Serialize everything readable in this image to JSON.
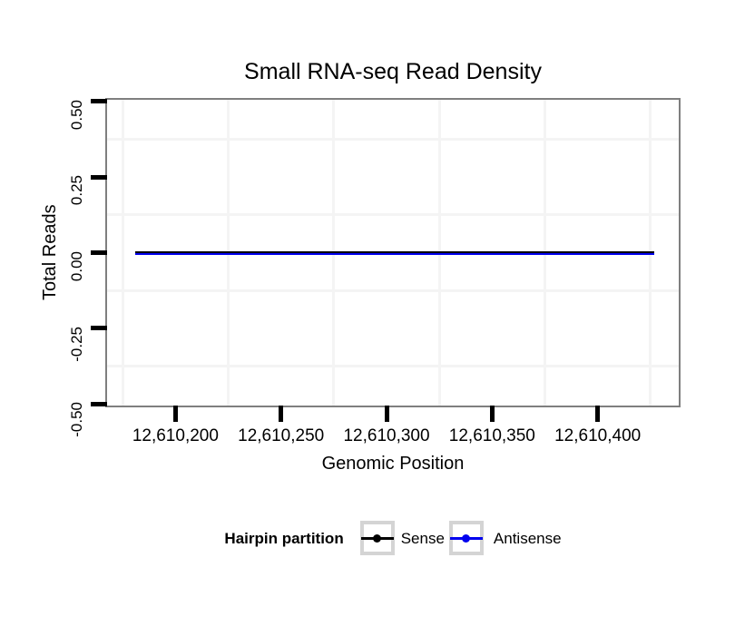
{
  "chart_data": {
    "type": "line",
    "title": "Small RNA-seq Read Density",
    "xlabel": "Genomic Position",
    "ylabel": "Total Reads",
    "xlim": [
      12610167.6,
      12610438.4
    ],
    "ylim": [
      -0.5045,
      0.5045
    ],
    "x_ticks": [
      {
        "value": 12610200,
        "label": "12,610,200"
      },
      {
        "value": 12610250,
        "label": "12,610,250"
      },
      {
        "value": 12610300,
        "label": "12,610,300"
      },
      {
        "value": 12610350,
        "label": "12,610,350"
      },
      {
        "value": 12610400,
        "label": "12,610,400"
      }
    ],
    "y_ticks": [
      {
        "value": 0.5,
        "label": "0.50"
      },
      {
        "value": 0.25,
        "label": "0.25"
      },
      {
        "value": 0.0,
        "label": "0.00"
      },
      {
        "value": -0.25,
        "label": "-0.25"
      },
      {
        "value": -0.5,
        "label": "-0.50"
      }
    ],
    "x_minor_gridlines": [
      12610175,
      12610225,
      12610275,
      12610325,
      12610375,
      12610425
    ],
    "y_minor_gridlines": [
      0.375,
      0.125,
      -0.125,
      -0.375
    ],
    "grid": "minor-only",
    "legend_position": "bottom",
    "series": [
      {
        "name": "Antisense",
        "color": "#0000ee",
        "x_start": 12610181,
        "x_end": 12610427,
        "y_value": 0
      },
      {
        "name": "Sense",
        "color": "#000000",
        "x_start": 12610181,
        "x_end": 12610427,
        "y_value": 0
      }
    ],
    "legend": {
      "title": "Hairpin partition",
      "entries": [
        {
          "label": "Sense",
          "color": "#000000"
        },
        {
          "label": "Antisense",
          "color": "#0000ee"
        }
      ]
    }
  },
  "colors": {
    "panel_border": "#7f7f7f",
    "minor_grid": "#f4f4f4",
    "tick": "#000000",
    "legend_key_frame": "#d4d4d4",
    "background": "#ffffff"
  }
}
